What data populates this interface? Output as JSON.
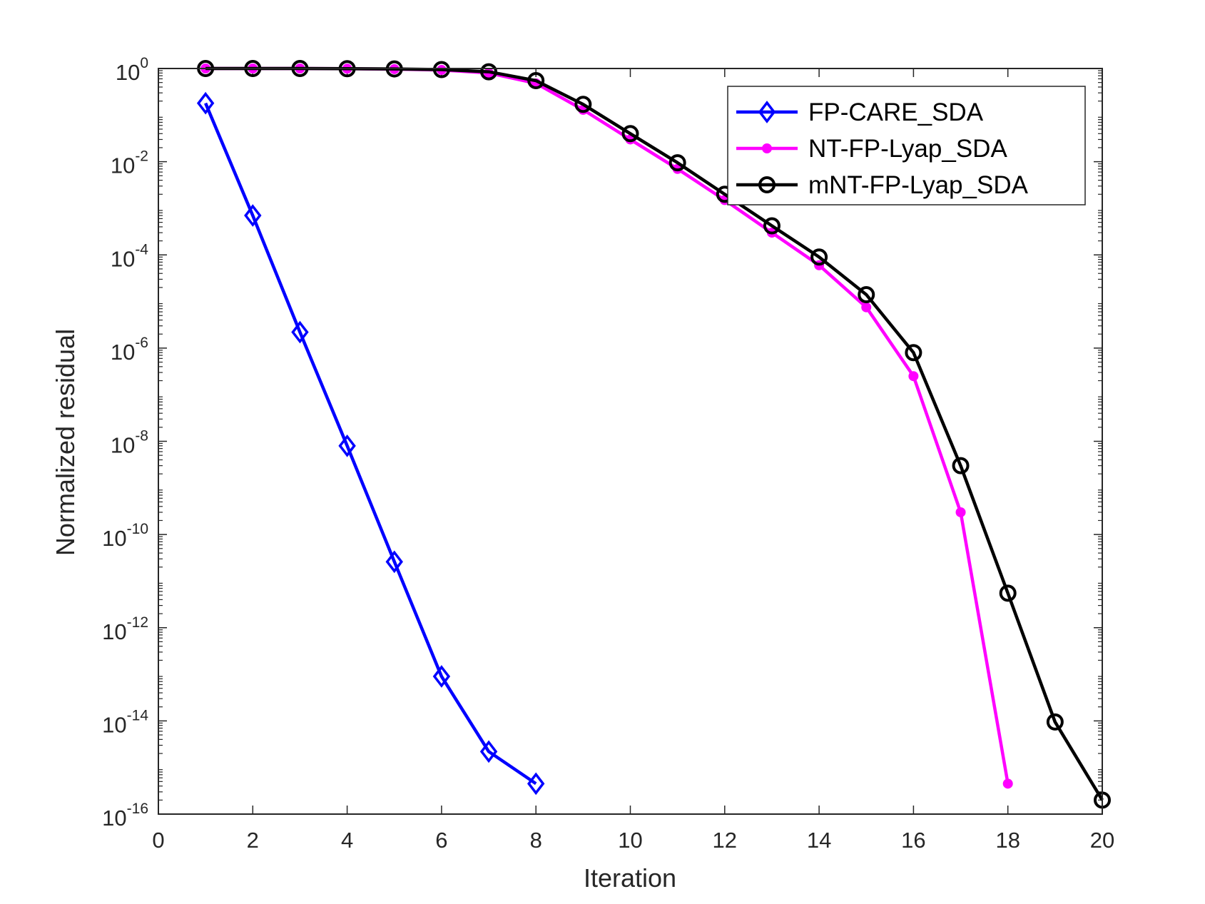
{
  "chart_data": {
    "type": "line",
    "title": "",
    "xlabel": "Iteration",
    "ylabel": "Normalized residual",
    "xlim": [
      0,
      20
    ],
    "ylim_exponent": [
      -16,
      0
    ],
    "yscale": "log",
    "xticks": [
      0,
      2,
      4,
      6,
      8,
      10,
      12,
      14,
      16,
      18,
      20
    ],
    "yticks": [
      {
        "base": "10",
        "exp": "-16",
        "value": 1e-16
      },
      {
        "base": "10",
        "exp": "-14",
        "value": 1e-14
      },
      {
        "base": "10",
        "exp": "-12",
        "value": 1e-12
      },
      {
        "base": "10",
        "exp": "-10",
        "value": 1e-10
      },
      {
        "base": "10",
        "exp": "-8",
        "value": 1e-08
      },
      {
        "base": "10",
        "exp": "-6",
        "value": 1e-06
      },
      {
        "base": "10",
        "exp": "-4",
        "value": 0.0001
      },
      {
        "base": "10",
        "exp": "-2",
        "value": 0.01
      },
      {
        "base": "10",
        "exp": "0",
        "value": 1
      }
    ],
    "legend_position": "top-right",
    "grid": false,
    "series": [
      {
        "name": "FP-CARE_SDA",
        "color": "#0000ff",
        "marker": "diamond",
        "x": [
          1,
          2,
          3,
          4,
          5,
          6,
          7,
          8
        ],
        "y": [
          0.18,
          0.0007,
          2.2e-06,
          8e-09,
          2.6e-11,
          9e-14,
          2.2e-15,
          4.5e-16
        ]
      },
      {
        "name": "NT-FP-Lyap_SDA",
        "color": "#ff00ff",
        "marker": "dot",
        "x": [
          1,
          2,
          3,
          4,
          5,
          6,
          7,
          8,
          9,
          10,
          11,
          12,
          13,
          14,
          15,
          16,
          17,
          18
        ],
        "y": [
          1,
          1,
          1,
          0.99,
          0.97,
          0.93,
          0.8,
          0.48,
          0.13,
          0.03,
          0.007,
          0.0015,
          0.0003,
          6e-05,
          7.5e-06,
          2.5e-07,
          3e-10,
          4.5e-16
        ]
      },
      {
        "name": "mNT-FP-Lyap_SDA",
        "color": "#000000",
        "marker": "circle",
        "x": [
          1,
          2,
          3,
          4,
          5,
          6,
          7,
          8,
          9,
          10,
          11,
          12,
          13,
          14,
          15,
          16,
          17,
          18,
          19,
          20
        ],
        "y": [
          1,
          1,
          1,
          0.99,
          0.98,
          0.95,
          0.85,
          0.55,
          0.17,
          0.04,
          0.0095,
          0.002,
          0.00042,
          9e-05,
          1.4e-05,
          8e-07,
          3e-09,
          5.5e-12,
          9.5e-15,
          2e-16
        ]
      }
    ]
  }
}
